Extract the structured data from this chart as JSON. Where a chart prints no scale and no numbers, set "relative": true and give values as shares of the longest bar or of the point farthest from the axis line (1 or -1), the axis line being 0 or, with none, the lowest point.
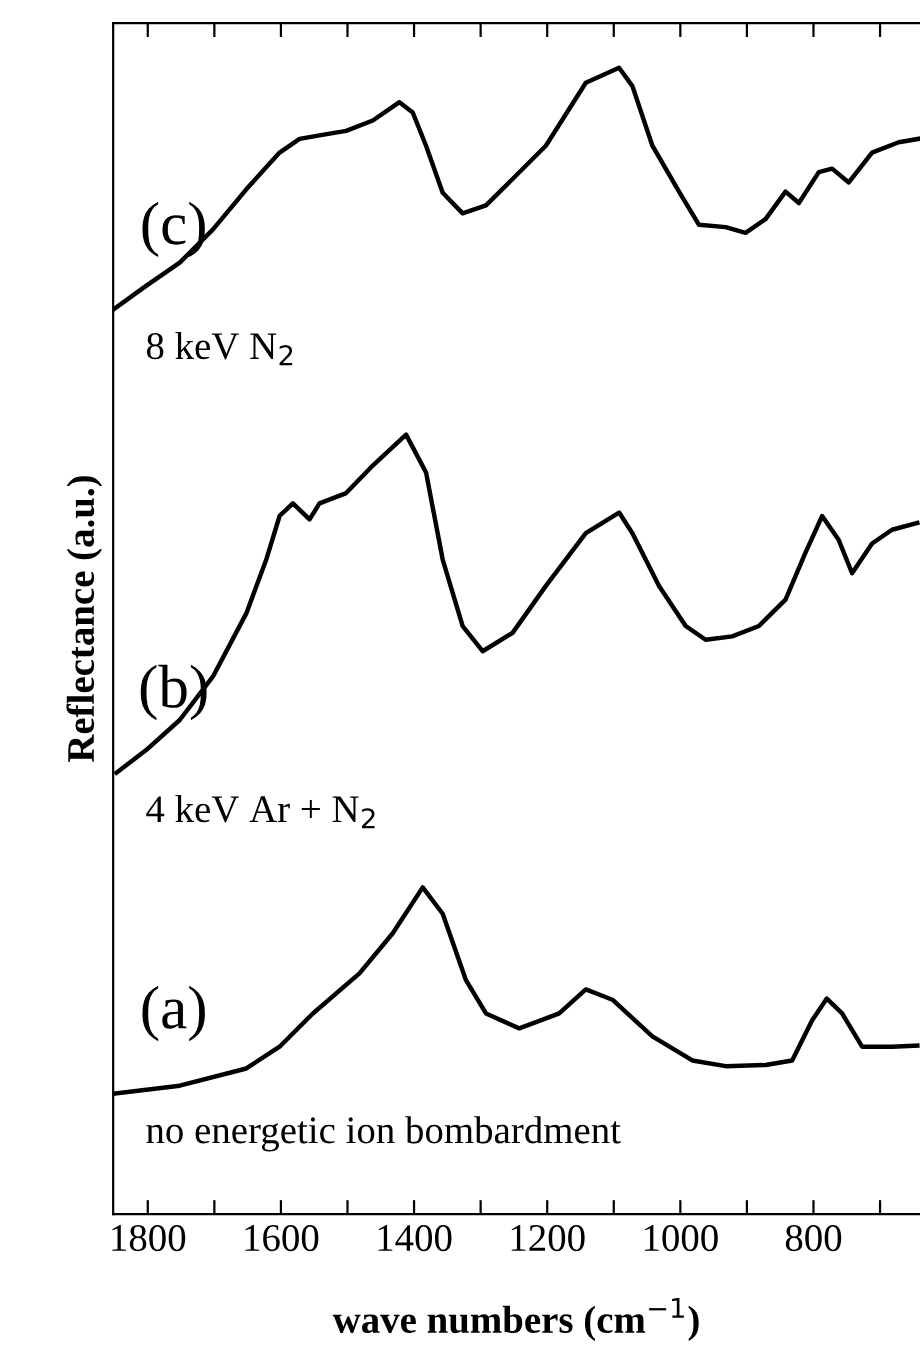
{
  "chart_data": {
    "type": "line",
    "relative": true,
    "xlabel": "wave numbers (cm$^{−1}$)",
    "ylabel": "Reflectance (a.u.)",
    "xlim": [
      1852,
      640
    ],
    "xticks": [
      1800,
      {
        "value": 1700,
        "label": null
      },
      1600,
      {
        "value": 1500,
        "label": null
      },
      1400,
      {
        "value": 1300,
        "label": null
      },
      1200,
      {
        "value": 1100,
        "label": null
      },
      1000,
      {
        "value": 900,
        "label": null
      },
      800,
      {
        "value": 700,
        "label": null
      }
    ],
    "grid": false,
    "legend": false,
    "marker": "none",
    "line_style": "solid",
    "series": [
      {
        "color": "#000000",
        "x": [
          1852,
          1802,
          1752,
          1702,
          1652,
          1602,
          1572,
          1542,
          1502,
          1462,
          1422,
          1402,
          1382,
          1357,
          1327,
          1292,
          1252,
          1202,
          1142,
          1092,
          1072,
          1042,
          1002,
          972,
          932,
          902,
          872,
          842,
          822,
          792,
          772,
          747,
          712,
          672,
          642
        ],
        "values": [
          0.789,
          0.81,
          0.83,
          0.859,
          0.894,
          0.926,
          0.938,
          0.941,
          0.945,
          0.954,
          0.97,
          0.961,
          0.932,
          0.891,
          0.873,
          0.88,
          0.903,
          0.932,
          0.987,
          1.0,
          0.984,
          0.932,
          0.892,
          0.863,
          0.861,
          0.856,
          0.868,
          0.892,
          0.882,
          0.909,
          0.912,
          0.9,
          0.926,
          0.935,
          0.938
        ]
      },
      {
        "color": "#000000",
        "x": [
          1847,
          1802,
          1752,
          1702,
          1652,
          1622,
          1602,
          1582,
          1557,
          1542,
          1502,
          1462,
          1412,
          1382,
          1357,
          1327,
          1297,
          1252,
          1202,
          1142,
          1092,
          1072,
          1032,
          992,
          962,
          922,
          882,
          842,
          812,
          787,
          762,
          742,
          712,
          682,
          644
        ],
        "values": [
          0.385,
          0.405,
          0.431,
          0.469,
          0.524,
          0.571,
          0.609,
          0.62,
          0.606,
          0.62,
          0.629,
          0.653,
          0.68,
          0.647,
          0.571,
          0.513,
          0.491,
          0.507,
          0.548,
          0.594,
          0.612,
          0.594,
          0.548,
          0.513,
          0.501,
          0.504,
          0.513,
          0.536,
          0.577,
          0.609,
          0.588,
          0.559,
          0.585,
          0.597,
          0.603
        ]
      },
      {
        "color": "#000000",
        "x": [
          1852,
          1752,
          1652,
          1602,
          1552,
          1482,
          1432,
          1387,
          1357,
          1322,
          1292,
          1242,
          1182,
          1142,
          1102,
          1042,
          982,
          932,
          872,
          832,
          802,
          780,
          757,
          727,
          682,
          644
        ],
        "values": [
          0.105,
          0.112,
          0.127,
          0.146,
          0.175,
          0.21,
          0.245,
          0.285,
          0.262,
          0.204,
          0.175,
          0.162,
          0.175,
          0.196,
          0.187,
          0.155,
          0.134,
          0.129,
          0.13,
          0.134,
          0.169,
          0.188,
          0.175,
          0.146,
          0.146,
          0.147
        ]
      }
    ],
    "annotations": [
      "(c)",
      "8 keV N$_{2}$",
      "(b)",
      "4 keV Ar + N$_{2}$",
      "(a)",
      "no energetic ion bombardment"
    ]
  }
}
